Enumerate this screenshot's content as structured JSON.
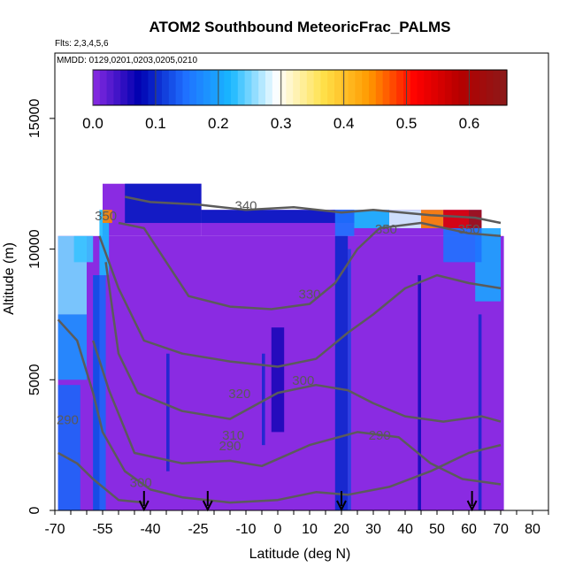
{
  "chart_data": {
    "type": "heatmap",
    "title": "ATOM2 Southbound MeteoricFrac_PALMS",
    "subtitle_flights": "Flts: 2,3,4,5,6",
    "subtitle_dates": "MMDD: 0129,0201,0203,0205,0210",
    "xlabel": "Latitude (deg N)",
    "ylabel": "Altitude (m)",
    "xlim": [
      -70,
      85
    ],
    "ylim": [
      0,
      17500
    ],
    "x_ticks": [
      -70,
      -55,
      -40,
      -25,
      -10,
      0,
      10,
      20,
      30,
      40,
      50,
      60,
      70,
      80
    ],
    "x_ticks_minor_step": 5,
    "y_ticks": [
      0,
      5000,
      10000,
      15000
    ],
    "colorbar": {
      "min": 0.0,
      "max": 0.66,
      "ticks": [
        0.0,
        0.1,
        0.2,
        0.3,
        0.4,
        0.5,
        0.6
      ],
      "tick_labels": [
        "0.0",
        "0.1",
        "0.2",
        "0.3",
        "0.4",
        "0.5",
        "0.6"
      ],
      "colors": [
        "#8a2be2",
        "#0000b0",
        "#1f6fff",
        "#19b8ff",
        "#ffffff",
        "#ffe14a",
        "#ff9a00",
        "#ff0000",
        "#b40000",
        "#8b1a1a"
      ]
    },
    "background_color": "#8a2be2",
    "cells": [
      {
        "x": [
          -69,
          -62
        ],
        "y": [
          0,
          4800
        ],
        "v": 0.14
      },
      {
        "x": [
          -69,
          -60
        ],
        "y": [
          5000,
          7500
        ],
        "v": 0.18
      },
      {
        "x": [
          -69,
          -60
        ],
        "y": [
          7500,
          10500
        ],
        "v": 0.25
      },
      {
        "x": [
          -64,
          -58
        ],
        "y": [
          9500,
          10500
        ],
        "v": 0.23
      },
      {
        "x": [
          -58,
          -54
        ],
        "y": [
          0,
          9000
        ],
        "v": 0.14
      },
      {
        "x": [
          -56,
          -53
        ],
        "y": [
          9000,
          11500
        ],
        "v": 0.22
      },
      {
        "x": [
          -55,
          -52
        ],
        "y": [
          11000,
          11500
        ],
        "v": 0.45
      },
      {
        "x": [
          -48,
          -24
        ],
        "y": [
          11000,
          12500
        ],
        "v": 0.09
      },
      {
        "x": [
          -24,
          24
        ],
        "y": [
          11000,
          11500
        ],
        "v": 0.09
      },
      {
        "x": [
          18,
          24
        ],
        "y": [
          10500,
          11500
        ],
        "v": 0.15
      },
      {
        "x": [
          24,
          35
        ],
        "y": [
          10800,
          11500
        ],
        "v": 0.22
      },
      {
        "x": [
          35,
          45
        ],
        "y": [
          10800,
          11500
        ],
        "v": 0.28
      },
      {
        "x": [
          45,
          52
        ],
        "y": [
          10800,
          11500
        ],
        "v": 0.45
      },
      {
        "x": [
          52,
          60
        ],
        "y": [
          10800,
          11500
        ],
        "v": 0.55
      },
      {
        "x": [
          60,
          64
        ],
        "y": [
          10800,
          11500
        ],
        "v": 0.63
      },
      {
        "x": [
          62,
          70
        ],
        "y": [
          8000,
          10800
        ],
        "v": 0.2
      },
      {
        "x": [
          52,
          64
        ],
        "y": [
          9500,
          10800
        ],
        "v": 0.15
      },
      {
        "x": [
          18,
          22
        ],
        "y": [
          0,
          10500
        ],
        "v": 0.1
      },
      {
        "x": [
          -2,
          2
        ],
        "y": [
          3000,
          7000
        ],
        "v": 0.06
      }
    ],
    "contour_levels": [
      290,
      300,
      310,
      320,
      330,
      340,
      350
    ],
    "contour_labels": [
      "290",
      "290",
      "290",
      "300",
      "300",
      "310",
      "320",
      "330",
      "340",
      "350",
      "350",
      "350"
    ],
    "flight_markers_lat": [
      -42,
      -22,
      20,
      61
    ]
  }
}
